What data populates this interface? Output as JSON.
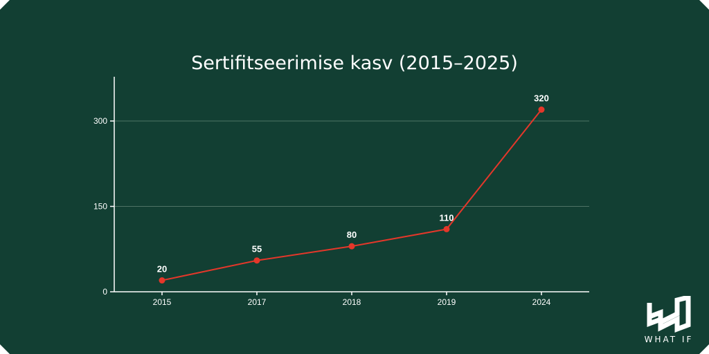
{
  "colors": {
    "background": "#123f33",
    "line": "#e5372a",
    "axis": "#ffffff",
    "grid": "#4f7466",
    "text": "#ffffff"
  },
  "brand": {
    "text": "WHAT IF"
  },
  "chart_data": {
    "type": "line",
    "title": "Sertifitseerimise kasv (2015–2025)",
    "xlabel": "",
    "ylabel": "",
    "categories": [
      "2015",
      "2017",
      "2018",
      "2019",
      "2024"
    ],
    "series": [
      {
        "values": [
          20,
          55,
          80,
          110,
          320
        ]
      }
    ],
    "data_labels": [
      "20",
      "55",
      "80",
      "110",
      "320"
    ],
    "yticks": [
      0,
      150,
      300
    ],
    "ylim": [
      0,
      380
    ],
    "grid": true,
    "legend": false
  }
}
